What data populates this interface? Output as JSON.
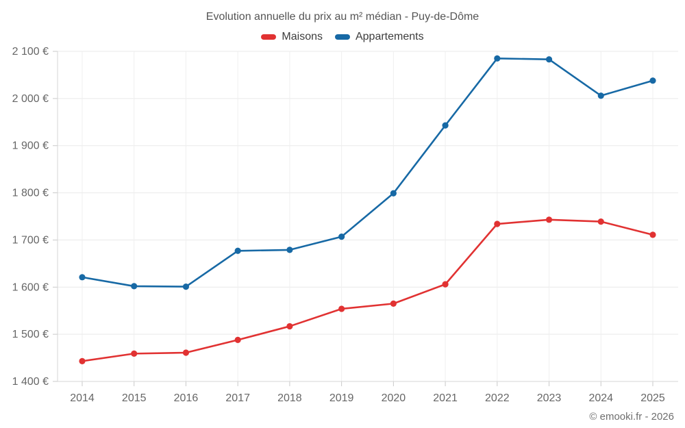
{
  "chart_data": {
    "type": "line",
    "title": "Evolution annuelle du prix au m² médian - Puy-de-Dôme",
    "categories": [
      "2014",
      "2015",
      "2016",
      "2017",
      "2018",
      "2019",
      "2020",
      "2021",
      "2022",
      "2023",
      "2024",
      "2025"
    ],
    "series": [
      {
        "name": "Maisons",
        "color": "#e13232",
        "values": [
          1443,
          1459,
          1461,
          1488,
          1517,
          1554,
          1565,
          1606,
          1734,
          1743,
          1739,
          1711
        ]
      },
      {
        "name": "Appartements",
        "color": "#1769a5",
        "values": [
          1621,
          1602,
          1601,
          1677,
          1679,
          1707,
          1799,
          1943,
          2085,
          2083,
          2006,
          2038
        ]
      }
    ],
    "xlabel": "",
    "ylabel": "",
    "ylim": [
      1400,
      2100
    ],
    "ytick_step": 100,
    "ytick_suffix": " €",
    "grid": true,
    "legend_position": "top"
  },
  "footer": {
    "credit": "© emooki.fr - 2026"
  }
}
